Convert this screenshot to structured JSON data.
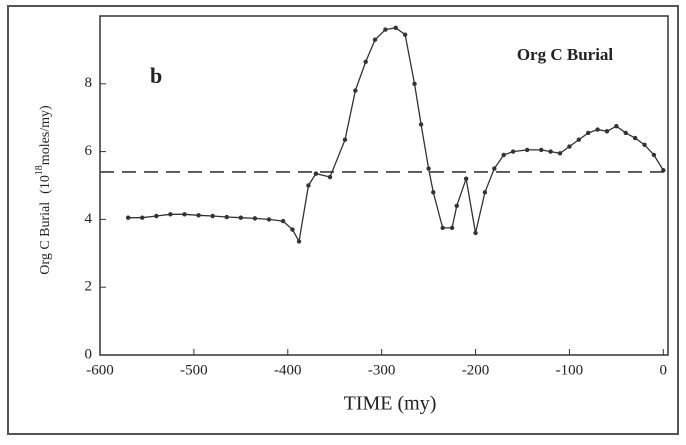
{
  "chart_data": {
    "type": "line",
    "panel_label": "b",
    "title": "Org C Burial",
    "xlabel": "TIME  (my)",
    "ylabel_main": "Org C Burial",
    "ylabel_pre": "(10",
    "ylabel_exp": "18",
    "ylabel_post": "moles/my)",
    "xlim": [
      -600,
      5
    ],
    "ylim": [
      0,
      10
    ],
    "xticks": [
      -600,
      -500,
      -400,
      -300,
      -200,
      -100,
      0
    ],
    "yticks": [
      0,
      2,
      4,
      6,
      8
    ],
    "reference_line": 5.4,
    "color": "#333333",
    "x": [
      -570,
      -555,
      -540,
      -525,
      -510,
      -495,
      -480,
      -465,
      -450,
      -435,
      -420,
      -405,
      -395,
      -388,
      -378,
      -370,
      -355,
      -339,
      -328,
      -317,
      -307,
      -296,
      -285,
      -275,
      -265,
      -258,
      -250,
      -245,
      -235,
      -225,
      -220,
      -210,
      -200,
      -190,
      -180,
      -170,
      -160,
      -145,
      -130,
      -120,
      -110,
      -100,
      -90,
      -80,
      -70,
      -60,
      -50,
      -40,
      -30,
      -20,
      -10,
      0
    ],
    "values": [
      4.05,
      4.05,
      4.1,
      4.15,
      4.15,
      4.12,
      4.1,
      4.07,
      4.05,
      4.03,
      4.0,
      3.95,
      3.7,
      3.35,
      5.0,
      5.35,
      5.25,
      6.35,
      7.8,
      8.65,
      9.3,
      9.6,
      9.65,
      9.45,
      8.0,
      6.8,
      5.5,
      4.8,
      3.75,
      3.75,
      4.4,
      5.2,
      3.6,
      4.8,
      5.5,
      5.9,
      6.0,
      6.05,
      6.05,
      6.0,
      5.95,
      6.15,
      6.35,
      6.55,
      6.65,
      6.6,
      6.75,
      6.55,
      6.4,
      6.2,
      5.9,
      5.45
    ]
  }
}
